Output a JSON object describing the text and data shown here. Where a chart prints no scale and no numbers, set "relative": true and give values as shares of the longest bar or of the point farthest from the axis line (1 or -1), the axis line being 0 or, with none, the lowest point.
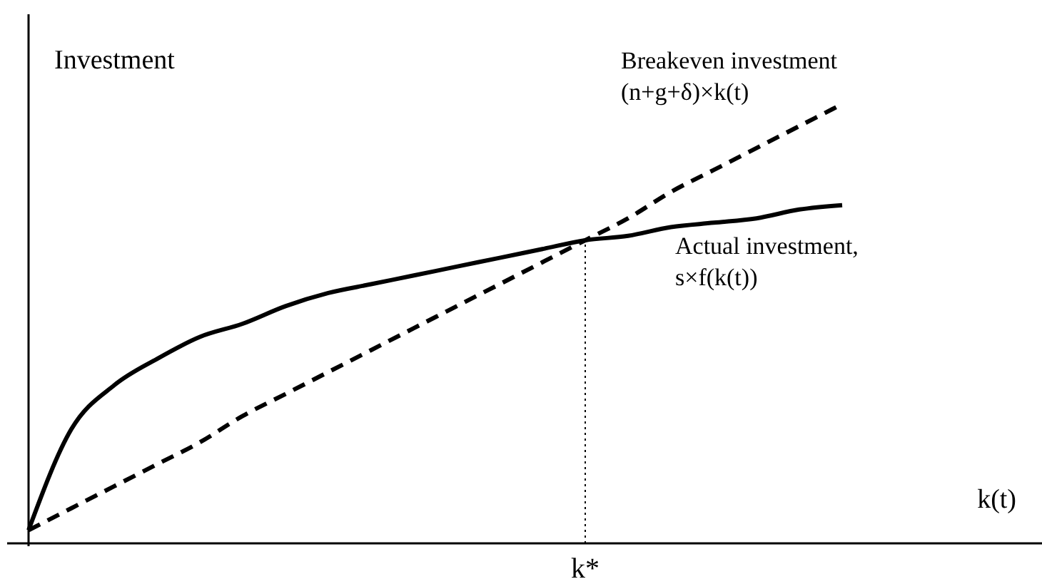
{
  "chart_data": {
    "type": "line",
    "relative": true,
    "xlabel": "k(t)",
    "ylabel": "Investment",
    "categories": [
      null,
      null,
      null,
      null,
      null,
      null,
      null,
      null,
      null,
      null,
      null,
      null,
      null,
      null,
      null,
      null,
      null,
      null,
      null,
      null
    ],
    "series": [
      {
        "name": "Breakeven investment\n(n+g+δ)×k(t)",
        "color": "#000000",
        "line_style": "dashed",
        "values": [
          0.03,
          0.08,
          0.13,
          0.18,
          0.23,
          0.29,
          0.34,
          0.39,
          0.44,
          0.49,
          0.54,
          0.59,
          0.64,
          0.69,
          0.74,
          0.8,
          0.85,
          0.9,
          0.95,
          1.0
        ]
      },
      {
        "name": "Actual investment,\ns×f(k(t))",
        "color": "#000000",
        "line_style": "solid",
        "values": [
          0.03,
          0.26,
          0.36,
          0.42,
          0.47,
          0.5,
          0.54,
          0.57,
          0.59,
          0.61,
          0.63,
          0.65,
          0.67,
          0.69,
          0.7,
          0.72,
          0.73,
          0.74,
          0.76,
          0.77
        ]
      }
    ],
    "annotations": [
      "k*"
    ],
    "grid": false,
    "legend": false,
    "marker": "none"
  }
}
